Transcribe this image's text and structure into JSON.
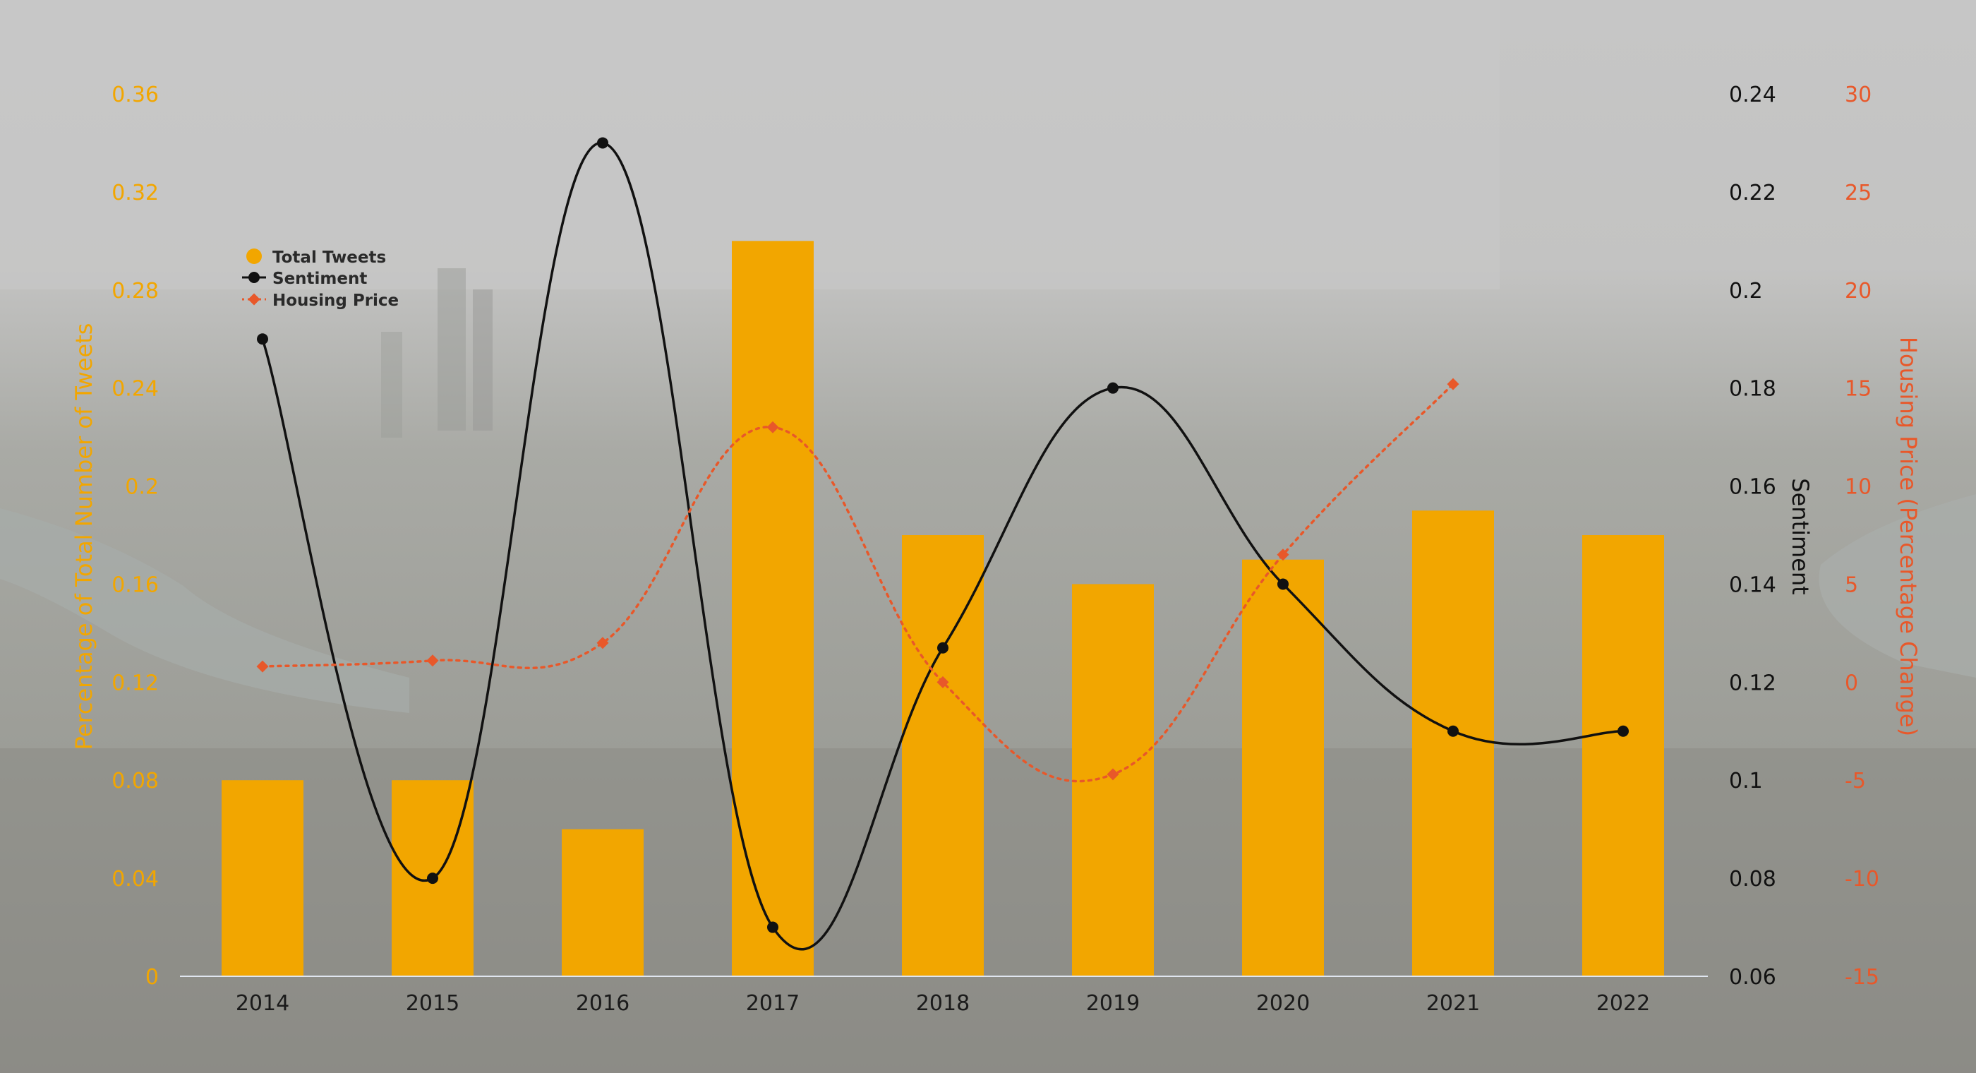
{
  "chart_data": {
    "type": "bar",
    "categories": [
      "2014",
      "2015",
      "2016",
      "2017",
      "2018",
      "2019",
      "2020",
      "2021",
      "2022"
    ],
    "series": [
      {
        "name": "Total Tweets",
        "type": "bar",
        "axis": "left",
        "values": [
          0.08,
          0.08,
          0.06,
          0.3,
          0.18,
          0.16,
          0.17,
          0.19,
          0.18
        ]
      },
      {
        "name": "Sentiment",
        "type": "line",
        "axis": "right1",
        "values": [
          0.19,
          0.08,
          0.23,
          0.07,
          0.127,
          0.18,
          0.14,
          0.11,
          0.11
        ]
      },
      {
        "name": "Housing Price",
        "type": "line",
        "style": "dotted",
        "axis": "right2",
        "values": [
          0.8,
          1.1,
          2.0,
          13.0,
          0.0,
          -4.7,
          6.5,
          15.2,
          null
        ]
      }
    ],
    "axes": {
      "left": {
        "label": "Percentage of Total Number of Tweets",
        "range": [
          0,
          0.36
        ],
        "ticks": [
          "0",
          "0.04",
          "0.08",
          "0.12",
          "0.16",
          "0.2",
          "0.24",
          "0.28",
          "0.32",
          "0.36"
        ],
        "color": "#f2a600"
      },
      "right1": {
        "label": "Sentiment",
        "range": [
          0.06,
          0.24
        ],
        "ticks": [
          "0.06",
          "0.08",
          "0.1",
          "0.12",
          "0.14",
          "0.16",
          "0.18",
          "0.2",
          "0.22",
          "0.24"
        ],
        "color": "#111111"
      },
      "right2": {
        "label": "Housing Price (Percentage Change)",
        "range": [
          -15,
          30
        ],
        "ticks": [
          "-15",
          "-10",
          "-5",
          "0",
          "5",
          "10",
          "15",
          "20",
          "25",
          "30"
        ],
        "color": "#e8582a"
      }
    },
    "legend": {
      "placement": "top-left",
      "entries": [
        "Total Tweets",
        "Sentiment",
        "Housing Price"
      ]
    },
    "colors": {
      "bars": "#f2a600",
      "sentiment": "#111111",
      "housing": "#e8582a"
    }
  }
}
